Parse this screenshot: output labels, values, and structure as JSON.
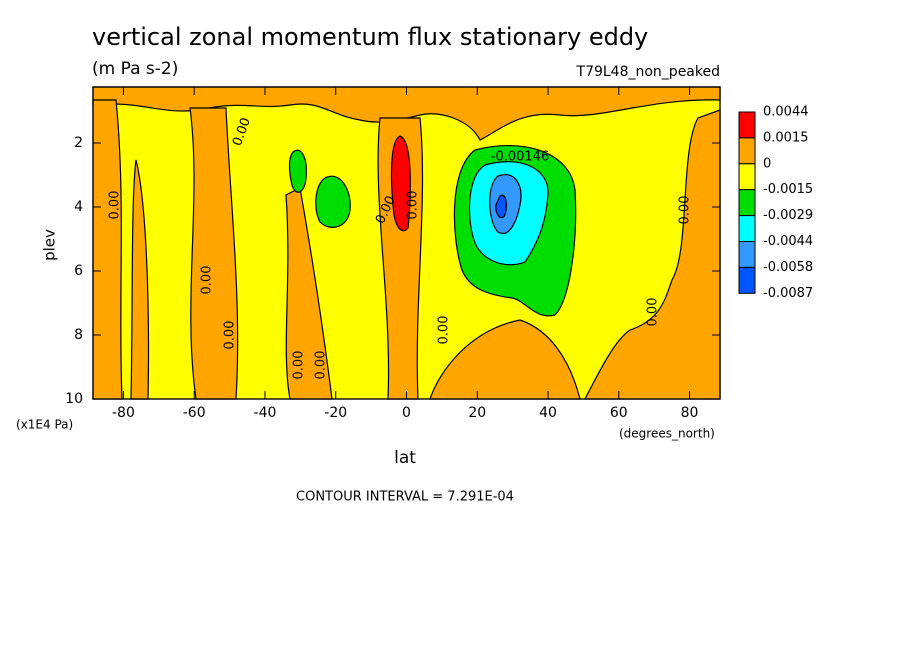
{
  "chart_data": {
    "type": "contour",
    "title": "vertical zonal momentum flux stationary eddy",
    "subtitle": "(m Pa s-2)",
    "dataset": "T79L48_non_peaked",
    "xlabel": "lat",
    "ylabel": "plev",
    "xunits": "(degrees_north)",
    "yunits": "(x1E4 Pa)",
    "xlim": [
      -88.6,
      88.6
    ],
    "ylim": [
      10,
      0.25
    ],
    "xticks": [
      -80,
      -60,
      -40,
      -20,
      0,
      20,
      40,
      60,
      80
    ],
    "yticks": [
      2,
      4,
      6,
      8,
      10
    ],
    "levels": [
      0.0044,
      0.0015,
      0,
      -0.0015,
      -0.0029,
      -0.0044,
      -0.0058,
      -0.0087
    ],
    "colors": [
      "#ff0000",
      "#ffa500",
      "#ffff00",
      "#00dd00",
      "#00ffff",
      "#3399ff",
      "#0055ff"
    ],
    "contour_interval": "CONTOUR INTERVAL = 7.291E-04",
    "annotations": [
      "0.00",
      "0.00",
      "0.00",
      "0.00",
      "0.00",
      "0.00",
      "0.00",
      "0.00",
      "0.00",
      "0.00",
      "0.00",
      "-0.00146"
    ]
  }
}
